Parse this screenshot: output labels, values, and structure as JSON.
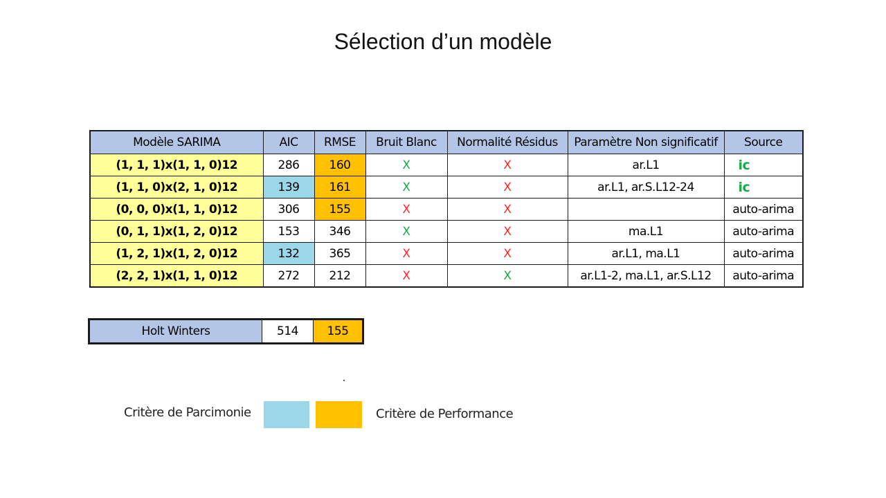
{
  "title": "Sélection d’un modèle",
  "colors": {
    "header_bg": "#b4c6e7",
    "model_bg": "#ffff99",
    "parcimonie": "#9ad7e8",
    "performance": "#ffc000",
    "green": "#1aa84a",
    "red": "#ff2a2a"
  },
  "table": {
    "headers": [
      "Modèle SARIMA",
      "AIC",
      "RMSE",
      "Bruit Blanc",
      "Normalité Résidus",
      "Paramètre Non significatif",
      "Source"
    ],
    "rows": [
      {
        "model": "(1, 1, 1)x(1, 1, 0)12",
        "aic": "286",
        "rmse": "160",
        "bruit": "X",
        "normalite": "X",
        "param": "ar.L1",
        "source": "ic"
      },
      {
        "model": "(1, 1, 0)x(2, 1, 0)12",
        "aic": "139",
        "rmse": "161",
        "bruit": "X",
        "normalite": "X",
        "param": "ar.L1, ar.S.L12-24",
        "source": "ic"
      },
      {
        "model": "(0, 0, 0)x(1, 1, 0)12",
        "aic": "306",
        "rmse": "155",
        "bruit": "X",
        "normalite": "X",
        "param": "",
        "source": "auto-arima"
      },
      {
        "model": "(0, 1, 1)x(1, 2, 0)12",
        "aic": "153",
        "rmse": "346",
        "bruit": "X",
        "normalite": "X",
        "param": "ma.L1",
        "source": "auto-arima"
      },
      {
        "model": "(1, 2, 1)x(1, 2, 0)12",
        "aic": "132",
        "rmse": "365",
        "bruit": "X",
        "normalite": "X",
        "param": "ar.L1, ma.L1",
        "source": "auto-arima"
      },
      {
        "model": "(2, 2, 1)x(1, 1, 0)12",
        "aic": "272",
        "rmse": "212",
        "bruit": "X",
        "normalite": "X",
        "param": "ar.L1-2, ma.L1, ar.S.L12",
        "source": "auto-arima"
      }
    ]
  },
  "holt_winters": {
    "label": "Holt Winters",
    "aic": "514",
    "rmse": "155"
  },
  "legend": {
    "parcimonie": "Critère de Parcimonie",
    "performance": "Critère de Performance"
  }
}
